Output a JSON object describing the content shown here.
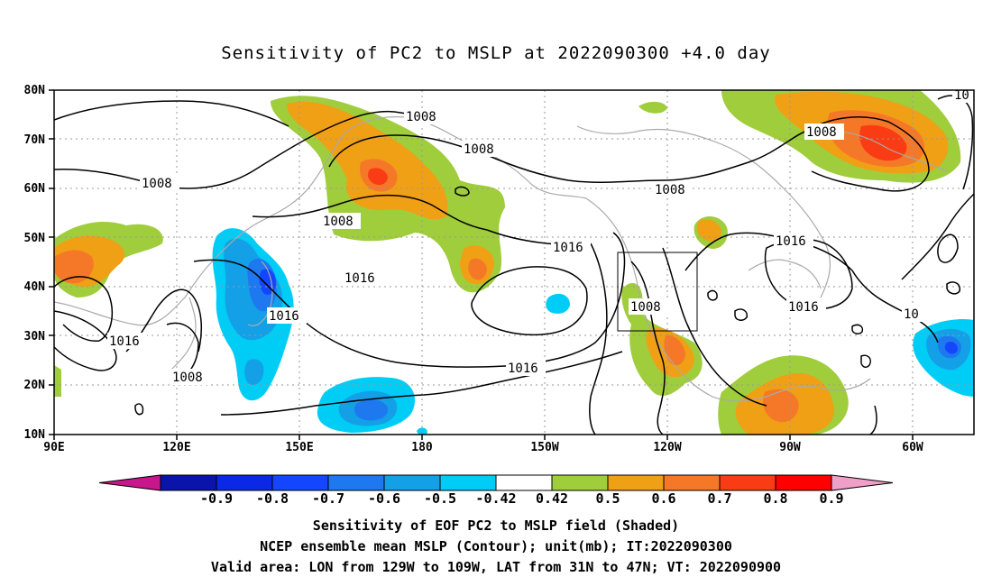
{
  "title": "Sensitivity of PC2 to MSLP at 2022090300 +4.0 day",
  "axes": {
    "x_ticks": [
      "90E",
      "120E",
      "150E",
      "180",
      "150W",
      "120W",
      "90W",
      "60W"
    ],
    "y_ticks": [
      "10N",
      "20N",
      "30N",
      "40N",
      "50N",
      "60N",
      "70N",
      "80N"
    ]
  },
  "contour_labels": [
    "1008",
    "1008",
    "1008",
    "1008",
    "1008",
    "1008",
    "1008",
    "1016",
    "1016",
    "1016",
    "1016",
    "1016",
    "1016",
    "1016",
    "10"
  ],
  "colorbar": {
    "labels": [
      "-0.9",
      "-0.8",
      "-0.7",
      "-0.6",
      "-0.5",
      "-0.42",
      "0.42",
      "0.5",
      "0.6",
      "0.7",
      "0.8",
      "0.9"
    ],
    "colors": [
      "#c8168c",
      "#0a14aa",
      "#0a28e6",
      "#1446ff",
      "#1e78f0",
      "#14a0e6",
      "#00cdf5",
      "#ffffff",
      "#a0cd3c",
      "#f0a014",
      "#f57828",
      "#fa3c14",
      "#ff0000",
      "#f0a0c8"
    ]
  },
  "captions": [
    "Sensitivity of EOF PC2 to MSLP field (Shaded)",
    "NCEP ensemble mean MSLP (Contour); unit(mb); IT:2022090300",
    "Valid area: LON from 129W to 109W, LAT from 31N to 47N; VT: 2022090900"
  ]
}
